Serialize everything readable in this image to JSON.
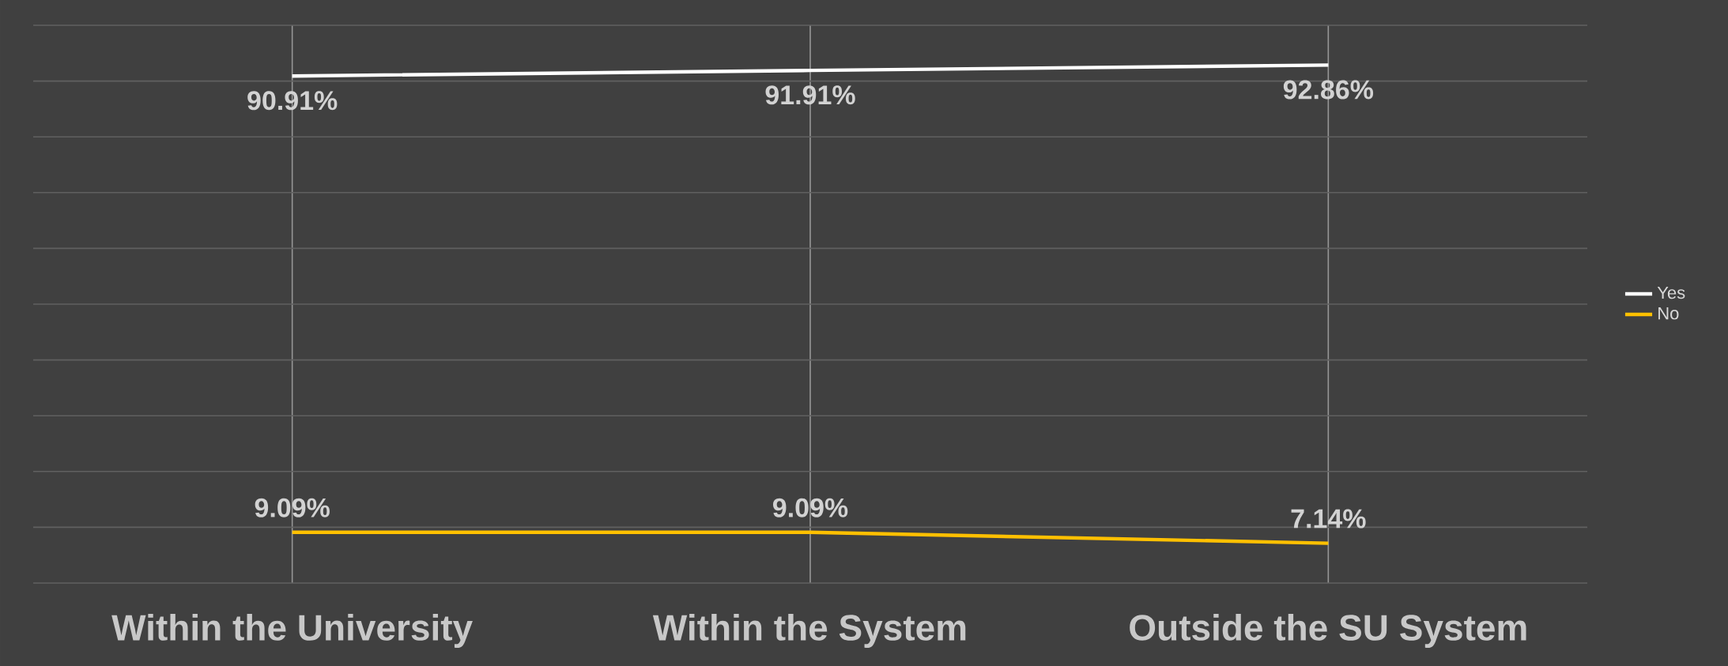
{
  "chart_data": {
    "type": "line",
    "categories": [
      "Within the University",
      "Within the System",
      "Outside the SU System"
    ],
    "series": [
      {
        "name": "Yes",
        "color": "#ffffff",
        "values": [
          90.91,
          91.91,
          92.86
        ],
        "value_labels": [
          "90.91%",
          "91.91%",
          "92.86%"
        ]
      },
      {
        "name": "No",
        "color": "#ffc000",
        "values": [
          9.09,
          9.09,
          7.14
        ],
        "value_labels": [
          "9.09%",
          "9.09%",
          "7.14%"
        ]
      }
    ],
    "ylim": [
      0,
      100
    ],
    "yticks": [
      0,
      10,
      20,
      30,
      40,
      50,
      60,
      70,
      80,
      90,
      100
    ],
    "tick_labels": "x",
    "grid": true,
    "legend": "right",
    "marker": "none",
    "line_style": "solid"
  }
}
